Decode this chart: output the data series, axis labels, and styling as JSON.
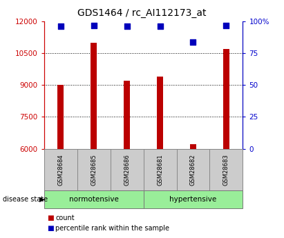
{
  "title": "GDS1464 / rc_AI112173_at",
  "samples": [
    "GSM28684",
    "GSM28685",
    "GSM28686",
    "GSM28681",
    "GSM28682",
    "GSM28683"
  ],
  "counts": [
    9000,
    11000,
    9200,
    9400,
    6200,
    10700
  ],
  "baseline": 6000,
  "percentile_ranks": [
    96,
    97,
    96,
    96,
    84,
    97
  ],
  "ylim_left": [
    6000,
    12000
  ],
  "ylim_right": [
    0,
    100
  ],
  "yticks_left": [
    6000,
    7500,
    9000,
    10500,
    12000
  ],
  "yticks_right": [
    0,
    25,
    50,
    75,
    100
  ],
  "ytick_labels_left": [
    "6000",
    "7500",
    "9000",
    "10500",
    "12000"
  ],
  "ytick_labels_right": [
    "0",
    "25",
    "50",
    "75",
    "100%"
  ],
  "bar_color": "#bb0000",
  "dot_color": "#0000bb",
  "group1_label": "normotensive",
  "group2_label": "hypertensive",
  "group1_indices": [
    0,
    1,
    2
  ],
  "group2_indices": [
    3,
    4,
    5
  ],
  "group_bg_color": "#99ee99",
  "sample_box_color": "#cccccc",
  "disease_state_label": "disease state",
  "legend_count_label": "count",
  "legend_percentile_label": "percentile rank within the sample",
  "title_fontsize": 10,
  "axis_tick_color_left": "#cc0000",
  "axis_tick_color_right": "#0000cc",
  "bar_width": 0.18,
  "dot_size": 28
}
